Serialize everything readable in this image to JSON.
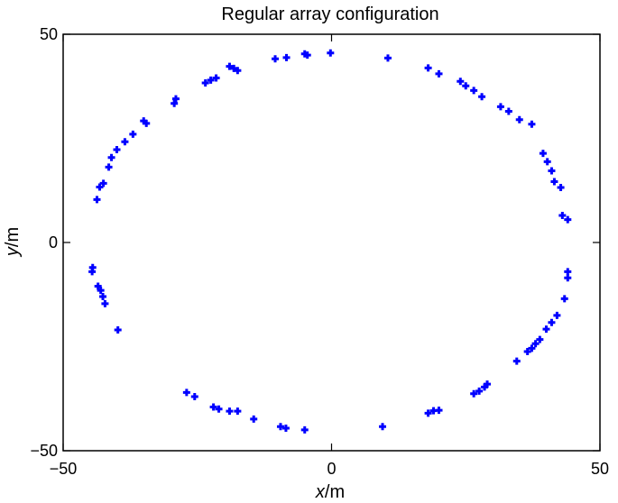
{
  "chart_data": {
    "type": "scatter",
    "title": "Regular array configuration",
    "xlabel": {
      "var": "x",
      "unit": "/m"
    },
    "ylabel": {
      "var": "y",
      "unit": "/m"
    },
    "xlim": [
      -50,
      50
    ],
    "ylim": [
      -50,
      50
    ],
    "xticks": [
      {
        "value": -50,
        "label": "−50"
      },
      {
        "value": 0,
        "label": "0"
      },
      {
        "value": 50,
        "label": "50"
      }
    ],
    "yticks": [
      {
        "value": -50,
        "label": "−50"
      },
      {
        "value": 0,
        "label": "0"
      },
      {
        "value": 50,
        "label": "50"
      }
    ],
    "grid": false,
    "marker_color": "#0000ff",
    "x": [
      -0.2,
      -5,
      -4.5,
      -8.4,
      -10.5,
      -17.5,
      -18.2,
      -19,
      -21.5,
      -22.5,
      -23.5,
      -29,
      -29.3,
      -34.5,
      -35,
      -37,
      -38.5,
      -40,
      -41,
      -41.5,
      -42.5,
      -43.2,
      -43.7,
      -44.5,
      -44.6,
      -43.5,
      -43,
      -42.6,
      -42.2,
      -39.8,
      -27,
      -25.5,
      -22,
      -21,
      -19,
      -17.5,
      -14.5,
      -9.5,
      -8.5,
      -5,
      9.5,
      18,
      19,
      20,
      26.5,
      27.5,
      28.5,
      29,
      34.5,
      36.5,
      37.3,
      38,
      38.8,
      40,
      41,
      42,
      43.4,
      44,
      44,
      44,
      43,
      42.7,
      41.5,
      41,
      40.2,
      39.4,
      37.3,
      35,
      33,
      31.5,
      28,
      26.5,
      25,
      24,
      20,
      18,
      10.5
    ],
    "y": [
      45.5,
      45.3,
      45,
      44.4,
      44.1,
      41.3,
      41.8,
      42.3,
      39.5,
      39,
      38.3,
      34.5,
      33.4,
      28.6,
      29.2,
      26,
      24.2,
      22.3,
      20.4,
      18.1,
      14.2,
      13.3,
      10.3,
      -6,
      -7,
      -10.5,
      -11.5,
      -13,
      -14.7,
      -21,
      -36,
      -37,
      -39.5,
      -40,
      -40.5,
      -40.5,
      -42.4,
      -44.2,
      -44.6,
      -45,
      -44.2,
      -41,
      -40.4,
      -40.3,
      -36.3,
      -35.7,
      -34.7,
      -34,
      -28.5,
      -26.2,
      -25.4,
      -24.3,
      -23.3,
      -20.8,
      -19.2,
      -17.5,
      -13.5,
      -8.5,
      -7,
      5.5,
      6.5,
      13.2,
      14.6,
      17.2,
      19.4,
      21.4,
      28.4,
      29.5,
      31.5,
      32.6,
      35,
      36.5,
      37.6,
      38.7,
      40.5,
      41.9,
      44.3
    ]
  }
}
